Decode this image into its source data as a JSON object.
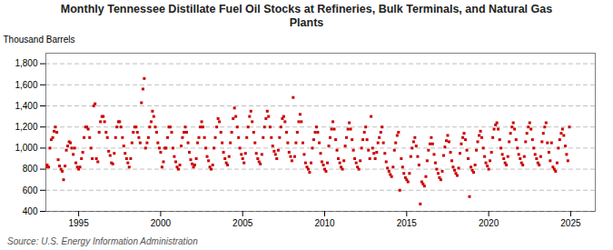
{
  "chart_data": {
    "type": "scatter",
    "title": "Monthly Tennessee Distillate Fuel Oil Stocks at Refineries, Bulk Terminals, and Natural Gas\nPlants",
    "ylabel": "Thousand Barrels",
    "source": "Source: U.S. Energy Information Administration",
    "color": "#cc0000",
    "marker": "square",
    "grid": "y",
    "xlim": [
      1993.0,
      2026.5
    ],
    "xticks": [
      1995,
      2000,
      2005,
      2010,
      2015,
      2020,
      2025
    ],
    "ylim": [
      400,
      1900
    ],
    "yticks": [
      400,
      600,
      800,
      {
        "value": 1000,
        "label": "1,000"
      },
      {
        "value": 1200,
        "label": "1,200"
      },
      {
        "value": 1400,
        "label": "1,400"
      },
      {
        "value": 1600,
        "label": "1,600"
      },
      {
        "value": 1800,
        "label": "1,800"
      }
    ],
    "x": [
      1993.0,
      1993.08,
      1993.17,
      1993.25,
      1993.33,
      1993.42,
      1993.5,
      1993.58,
      1993.67,
      1993.75,
      1993.83,
      1993.92,
      1994.0,
      1994.08,
      1994.17,
      1994.25,
      1994.33,
      1994.42,
      1994.5,
      1994.58,
      1994.67,
      1994.75,
      1994.83,
      1994.92,
      1995.0,
      1995.08,
      1995.17,
      1995.25,
      1995.33,
      1995.42,
      1995.5,
      1995.58,
      1995.67,
      1995.75,
      1995.83,
      1995.92,
      1996.0,
      1996.08,
      1996.17,
      1996.25,
      1996.33,
      1996.42,
      1996.5,
      1996.58,
      1996.67,
      1996.75,
      1996.83,
      1996.92,
      1997.0,
      1997.08,
      1997.17,
      1997.25,
      1997.33,
      1997.42,
      1997.5,
      1997.58,
      1997.67,
      1997.75,
      1997.83,
      1997.92,
      1998.0,
      1998.08,
      1998.17,
      1998.25,
      1998.33,
      1998.42,
      1998.5,
      1998.58,
      1998.67,
      1998.75,
      1998.83,
      1998.92,
      1999.0,
      1999.08,
      1999.17,
      1999.25,
      1999.33,
      1999.42,
      1999.5,
      1999.58,
      1999.67,
      1999.75,
      1999.83,
      1999.92,
      2000.0,
      2000.08,
      2000.17,
      2000.25,
      2000.33,
      2000.42,
      2000.5,
      2000.58,
      2000.67,
      2000.75,
      2000.83,
      2000.92,
      2001.0,
      2001.08,
      2001.17,
      2001.25,
      2001.33,
      2001.42,
      2001.5,
      2001.58,
      2001.67,
      2001.75,
      2001.83,
      2001.92,
      2002.0,
      2002.08,
      2002.17,
      2002.25,
      2002.33,
      2002.42,
      2002.5,
      2002.58,
      2002.67,
      2002.75,
      2002.83,
      2002.92,
      2003.0,
      2003.08,
      2003.17,
      2003.25,
      2003.33,
      2003.42,
      2003.5,
      2003.58,
      2003.67,
      2003.75,
      2003.83,
      2003.92,
      2004.0,
      2004.08,
      2004.17,
      2004.25,
      2004.33,
      2004.42,
      2004.5,
      2004.58,
      2004.67,
      2004.75,
      2004.83,
      2004.92,
      2005.0,
      2005.08,
      2005.17,
      2005.25,
      2005.33,
      2005.42,
      2005.5,
      2005.58,
      2005.67,
      2005.75,
      2005.83,
      2005.92,
      2006.0,
      2006.08,
      2006.17,
      2006.25,
      2006.33,
      2006.42,
      2006.5,
      2006.58,
      2006.67,
      2006.75,
      2006.83,
      2006.92,
      2007.0,
      2007.08,
      2007.17,
      2007.25,
      2007.33,
      2007.42,
      2007.5,
      2007.58,
      2007.67,
      2007.75,
      2007.83,
      2007.92,
      2008.0,
      2008.08,
      2008.17,
      2008.25,
      2008.33,
      2008.42,
      2008.5,
      2008.58,
      2008.67,
      2008.75,
      2008.83,
      2008.92,
      2009.0,
      2009.08,
      2009.17,
      2009.25,
      2009.33,
      2009.42,
      2009.5,
      2009.58,
      2009.67,
      2009.75,
      2009.83,
      2009.92,
      2010.0,
      2010.08,
      2010.17,
      2010.25,
      2010.33,
      2010.42,
      2010.5,
      2010.58,
      2010.67,
      2010.75,
      2010.83,
      2010.92,
      2011.0,
      2011.08,
      2011.17,
      2011.25,
      2011.33,
      2011.42,
      2011.5,
      2011.58,
      2011.67,
      2011.75,
      2011.83,
      2011.92,
      2012.0,
      2012.08,
      2012.17,
      2012.25,
      2012.33,
      2012.42,
      2012.5,
      2012.58,
      2012.67,
      2012.75,
      2012.83,
      2012.92,
      2013.0,
      2013.08,
      2013.17,
      2013.25,
      2013.33,
      2013.42,
      2013.5,
      2013.58,
      2013.67,
      2013.75,
      2013.83,
      2013.92,
      2014.0,
      2014.08,
      2014.17,
      2014.25,
      2014.33,
      2014.42,
      2014.5,
      2014.58,
      2014.67,
      2014.75,
      2014.83,
      2014.92,
      2015.0,
      2015.08,
      2015.17,
      2015.25,
      2015.33,
      2015.42,
      2015.5,
      2015.58,
      2015.67,
      2015.75,
      2015.83,
      2015.92,
      2016.0,
      2016.08,
      2016.17,
      2016.25,
      2016.33,
      2016.42,
      2016.5,
      2016.58,
      2016.67,
      2016.75,
      2016.83,
      2016.92,
      2017.0,
      2017.08,
      2017.17,
      2017.25,
      2017.33,
      2017.42,
      2017.5,
      2017.58,
      2017.67,
      2017.75,
      2017.83,
      2017.92,
      2018.0,
      2018.08,
      2018.17,
      2018.25,
      2018.33,
      2018.42,
      2018.5,
      2018.58,
      2018.67,
      2018.75,
      2018.83,
      2018.92,
      2019.0,
      2019.08,
      2019.17,
      2019.25,
      2019.33,
      2019.42,
      2019.5,
      2019.58,
      2019.67,
      2019.75,
      2019.83,
      2019.92,
      2020.0,
      2020.08,
      2020.17,
      2020.25,
      2020.33,
      2020.42,
      2020.5,
      2020.58,
      2020.67,
      2020.75,
      2020.83,
      2020.92,
      2021.0,
      2021.08,
      2021.17,
      2021.25,
      2021.33,
      2021.42,
      2021.5,
      2021.58,
      2021.67,
      2021.75,
      2021.83,
      2021.92,
      2022.0,
      2022.08,
      2022.17,
      2022.25,
      2022.33,
      2022.42,
      2022.5,
      2022.58,
      2022.67,
      2022.75,
      2022.83,
      2022.92,
      2023.0,
      2023.08,
      2023.17,
      2023.25,
      2023.33,
      2023.42,
      2023.5,
      2023.58,
      2023.67,
      2023.75,
      2023.83,
      2023.92,
      2024.0,
      2024.08,
      2024.17,
      2024.25,
      2024.33,
      2024.42,
      2024.5,
      2024.58,
      2024.67,
      2024.75,
      2024.83,
      2024.92
    ],
    "values": [
      820,
      840,
      820,
      1000,
      1080,
      1100,
      1160,
      1200,
      1150,
      890,
      830,
      800,
      780,
      700,
      830,
      980,
      1020,
      1060,
      1050,
      1000,
      940,
      1000,
      860,
      820,
      800,
      820,
      900,
      960,
      1100,
      1200,
      1200,
      1180,
      1100,
      1000,
      900,
      1400,
      1420,
      900,
      870,
      1150,
      1250,
      1300,
      1300,
      1250,
      1150,
      1100,
      970,
      930,
      860,
      850,
      950,
      1100,
      1200,
      1250,
      1250,
      1200,
      1100,
      1020,
      950,
      900,
      860,
      820,
      900,
      1050,
      1150,
      1200,
      1200,
      1150,
      1100,
      1050,
      1430,
      1560,
      1660,
      1000,
      1050,
      1100,
      1200,
      1250,
      1350,
      1300,
      1200,
      1150,
      1050,
      1000,
      960,
      820,
      870,
      1000,
      1000,
      1100,
      1200,
      1200,
      1150,
      1000,
      920,
      870,
      820,
      800,
      840,
      1020,
      1100,
      1150,
      1200,
      1150,
      1050,
      960,
      890,
      850,
      820,
      840,
      900,
      1050,
      1100,
      1200,
      1250,
      1200,
      1100,
      1000,
      920,
      880,
      820,
      800,
      840,
      1000,
      1100,
      1200,
      1280,
      1250,
      1150,
      1050,
      960,
      900,
      860,
      840,
      920,
      1050,
      1150,
      1280,
      1380,
      1300,
      1200,
      1100,
      1000,
      940,
      900,
      860,
      950,
      1100,
      1200,
      1300,
      1350,
      1250,
      1150,
      1050,
      950,
      900,
      870,
      850,
      940,
      1100,
      1200,
      1280,
      1350,
      1300,
      1200,
      1100,
      1020,
      970,
      940,
      900,
      980,
      1100,
      1200,
      1280,
      1300,
      1250,
      1150,
      1050,
      960,
      920,
      880,
      1480,
      920,
      1050,
      1150,
      1250,
      1320,
      1250,
      1050,
      940,
      860,
      820,
      800,
      770,
      860,
      1000,
      1080,
      1150,
      1200,
      1150,
      1050,
      950,
      870,
      840,
      800,
      780,
      860,
      1020,
      1100,
      1180,
      1250,
      1180,
      1080,
      980,
      900,
      860,
      820,
      800,
      880,
      1020,
      1100,
      1180,
      1240,
      1180,
      1080,
      980,
      900,
      860,
      820,
      800,
      880,
      1000,
      1080,
      1150,
      1200,
      1080,
      980,
      900,
      1300,
      1000,
      950,
      900,
      960,
      1050,
      1100,
      1150,
      1200,
      1050,
      950,
      870,
      810,
      780,
      750,
      730,
      820,
      980,
      1050,
      1120,
      1150,
      600,
      900,
      820,
      760,
      720,
      700,
      680,
      760,
      920,
      1000,
      1060,
      1100,
      1020,
      920,
      840,
      470,
      680,
      660,
      640,
      730,
      880,
      980,
      1040,
      1100,
      1040,
      940,
      860,
      800,
      760,
      720,
      700,
      780,
      930,
      1010,
      1070,
      1120,
      1060,
      960,
      880,
      820,
      790,
      760,
      740,
      810,
      950,
      1040,
      1100,
      1140,
      1080,
      980,
      900,
      540,
      820,
      790,
      770,
      840,
      980,
      1060,
      1120,
      1160,
      1100,
      1000,
      920,
      860,
      830,
      800,
      880,
      960,
      1100,
      1180,
      1220,
      1240,
      1180,
      1080,
      1000,
      940,
      900,
      860,
      840,
      920,
      1060,
      1140,
      1200,
      1240,
      1180,
      1080,
      1000,
      940,
      900,
      860,
      840,
      920,
      1060,
      1140,
      1200,
      1240,
      1180,
      1080,
      1000,
      940,
      900,
      860,
      840,
      920,
      1060,
      1140,
      1200,
      1240,
      1050,
      960,
      880,
      1050,
      820,
      800,
      780,
      860,
      1000,
      1080,
      1140,
      1180,
      1120,
      1020,
      940,
      880,
      1200
    ]
  }
}
